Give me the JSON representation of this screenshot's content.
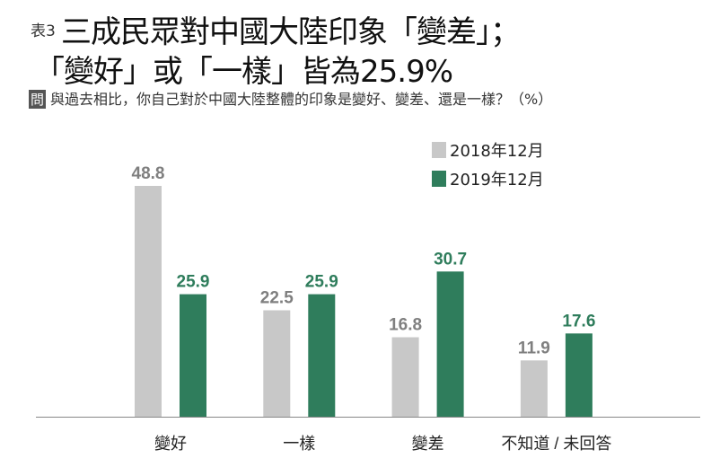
{
  "header": {
    "tag": "表3",
    "title_line1": "三成民眾對中國大陸印象「變差」；",
    "title_line2": "「變好」或「一樣」皆為25.9%",
    "question_label": "問",
    "question": "與過去相比，你自己對於中國大陸整體的印象是變好、變差、還是一樣？（%）"
  },
  "chart_data": {
    "type": "bar",
    "categories": [
      "變好",
      "一樣",
      "變差",
      "不知道 / 未回答"
    ],
    "series": [
      {
        "name": "2018年12月",
        "values": [
          48.8,
          22.5,
          16.8,
          11.9
        ],
        "color": "#c8c8c8",
        "label_color": "#7f7f7f"
      },
      {
        "name": "2019年12月",
        "values": [
          25.9,
          25.9,
          30.7,
          17.6
        ],
        "color": "#2f7d5c",
        "label_color": "#2f7d5c"
      }
    ],
    "ylim": [
      0,
      50
    ],
    "grid": false,
    "legend_position": "top-right"
  }
}
